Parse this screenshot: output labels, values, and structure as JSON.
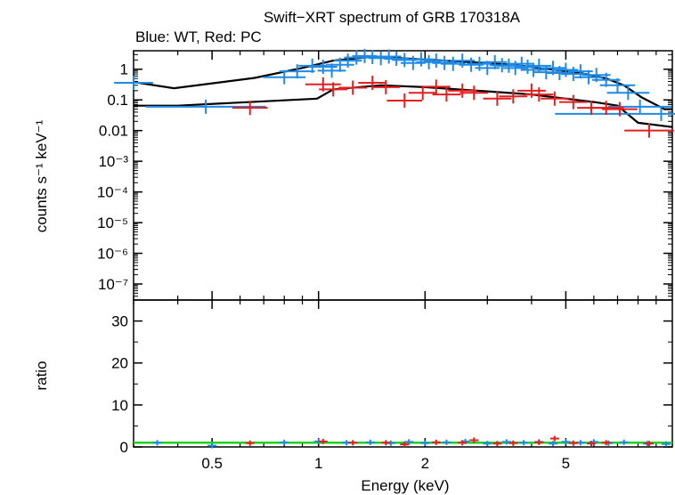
{
  "chart_data": [
    {
      "type": "scatter",
      "panel": "spectrum",
      "title": "Swift−XRT spectrum of GRB 170318A",
      "subtitle": "Blue: WT, Red: PC",
      "ylabel": "counts s⁻¹ keV⁻¹",
      "xlabel": "",
      "xscale": "log",
      "yscale": "log",
      "xlim": [
        0.3,
        10
      ],
      "ylim": [
        3e-08,
        4
      ],
      "xticks": [
        {
          "value": 0.5,
          "label": "0.5"
        },
        {
          "value": 1,
          "label": "1"
        },
        {
          "value": 2,
          "label": "2"
        },
        {
          "value": 5,
          "label": "5"
        }
      ],
      "yticks": [
        {
          "value": 1,
          "label": "1"
        },
        {
          "value": 0.1,
          "label": "0.1"
        },
        {
          "value": 0.01,
          "label": "0.01"
        },
        {
          "value": 0.001,
          "label": "10⁻³"
        },
        {
          "value": 0.0001,
          "label": "10⁻⁴"
        },
        {
          "value": 1e-05,
          "label": "10⁻⁵"
        },
        {
          "value": 1e-06,
          "label": "10⁻⁶"
        },
        {
          "value": 1e-07,
          "label": "10⁻⁷"
        }
      ],
      "colors": {
        "WT": "#1e8ae6",
        "PC": "#e61e1e",
        "model": "#000000"
      },
      "series": [
        {
          "mode": "WT",
          "color": "#1e8ae6",
          "points": [
            [
              0.3,
              0.36,
              0.055
            ],
            [
              0.48,
              0.06,
              0.17
            ],
            [
              0.8,
              0.55,
              0.06
            ],
            [
              0.87,
              0.85,
              0.05
            ],
            [
              0.96,
              1.3,
              0.04
            ],
            [
              1.03,
              1.2,
              0.04
            ],
            [
              1.09,
              0.9,
              0.04
            ],
            [
              1.15,
              1.4,
              0.04
            ],
            [
              1.21,
              1.9,
              0.04
            ],
            [
              1.28,
              2.4,
              0.035
            ],
            [
              1.35,
              2.7,
              0.035
            ],
            [
              1.42,
              2.5,
              0.035
            ],
            [
              1.5,
              2.3,
              0.035
            ],
            [
              1.58,
              2.6,
              0.035
            ],
            [
              1.66,
              2.2,
              0.035
            ],
            [
              1.75,
              2.0,
              0.035
            ],
            [
              1.85,
              1.6,
              0.035
            ],
            [
              1.95,
              2.1,
              0.035
            ],
            [
              2.05,
              1.7,
              0.035
            ],
            [
              2.15,
              1.9,
              0.035
            ],
            [
              2.27,
              1.6,
              0.035
            ],
            [
              2.4,
              1.5,
              0.035
            ],
            [
              2.55,
              1.9,
              0.035
            ],
            [
              2.7,
              1.4,
              0.035
            ],
            [
              2.85,
              1.5,
              0.035
            ],
            [
              3.0,
              1.1,
              0.035
            ],
            [
              3.15,
              1.7,
              0.035
            ],
            [
              3.3,
              1.35,
              0.035
            ],
            [
              3.45,
              1.3,
              0.035
            ],
            [
              3.6,
              1.1,
              0.035
            ],
            [
              3.75,
              1.5,
              0.035
            ],
            [
              3.9,
              1.2,
              0.035
            ],
            [
              4.05,
              0.95,
              0.035
            ],
            [
              4.2,
              1.3,
              0.035
            ],
            [
              4.4,
              0.8,
              0.035
            ],
            [
              4.6,
              1.1,
              0.035
            ],
            [
              4.8,
              0.75,
              0.035
            ],
            [
              5.0,
              0.95,
              0.035
            ],
            [
              5.25,
              0.7,
              0.035
            ],
            [
              5.5,
              0.85,
              0.035
            ],
            [
              5.8,
              0.55,
              0.04
            ],
            [
              6.1,
              0.65,
              0.04
            ],
            [
              6.5,
              0.45,
              0.04
            ],
            [
              7.0,
              0.3,
              0.05
            ],
            [
              7.5,
              0.17,
              0.06
            ],
            [
              8.1,
              0.06,
              0.09
            ],
            [
              9.3,
              0.035,
              0.3
            ]
          ]
        },
        {
          "mode": "PC",
          "color": "#e61e1e",
          "points": [
            [
              0.64,
              0.055,
              0.05
            ],
            [
              1.03,
              0.32,
              0.05
            ],
            [
              1.1,
              0.22,
              0.04
            ],
            [
              1.25,
              0.25,
              0.04
            ],
            [
              1.42,
              0.36,
              0.04
            ],
            [
              1.55,
              0.26,
              0.04
            ],
            [
              1.75,
              0.095,
              0.05
            ],
            [
              1.97,
              0.17,
              0.04
            ],
            [
              2.15,
              0.27,
              0.04
            ],
            [
              2.3,
              0.15,
              0.04
            ],
            [
              2.55,
              0.2,
              0.04
            ],
            [
              2.75,
              0.17,
              0.04
            ],
            [
              3.2,
              0.11,
              0.04
            ],
            [
              3.55,
              0.13,
              0.04
            ],
            [
              4.0,
              0.2,
              0.04
            ],
            [
              4.2,
              0.15,
              0.04
            ],
            [
              4.65,
              0.11,
              0.04
            ],
            [
              5.25,
              0.085,
              0.04
            ],
            [
              5.9,
              0.055,
              0.04
            ],
            [
              6.5,
              0.055,
              0.05
            ],
            [
              7.1,
              0.05,
              0.05
            ],
            [
              8.6,
              0.01,
              0.07
            ]
          ]
        }
      ],
      "models": [
        {
          "mode": "WT",
          "points": [
            [
              0.3,
              0.38
            ],
            [
              0.39,
              0.24
            ],
            [
              0.66,
              0.52
            ],
            [
              0.9,
              1.1
            ],
            [
              1.1,
              1.9
            ],
            [
              1.4,
              2.5
            ],
            [
              1.8,
              2.2
            ],
            [
              2.5,
              1.8
            ],
            [
              3.5,
              1.4
            ],
            [
              4.5,
              1.0
            ],
            [
              5.5,
              0.75
            ],
            [
              6.5,
              0.5
            ],
            [
              7.3,
              0.3
            ],
            [
              8.2,
              0.12
            ],
            [
              9.5,
              0.05
            ],
            [
              10,
              0.05
            ]
          ]
        },
        {
          "mode": "PC",
          "points": [
            [
              0.3,
              0.065
            ],
            [
              0.4,
              0.065
            ],
            [
              0.99,
              0.11
            ],
            [
              1.1,
              0.22
            ],
            [
              1.5,
              0.3
            ],
            [
              2.0,
              0.26
            ],
            [
              3.0,
              0.19
            ],
            [
              4.0,
              0.15
            ],
            [
              5.0,
              0.11
            ],
            [
              6.0,
              0.085
            ],
            [
              7.0,
              0.065
            ],
            [
              8.0,
              0.018
            ],
            [
              10,
              0.013
            ]
          ]
        }
      ]
    },
    {
      "type": "scatter",
      "panel": "ratio",
      "xlabel": "Energy (keV)",
      "ylabel": "ratio",
      "xscale": "log",
      "yscale": "linear",
      "xlim": [
        0.3,
        10
      ],
      "ylim": [
        0,
        35
      ],
      "xticks": [
        {
          "value": 0.5,
          "label": "0.5"
        },
        {
          "value": 1,
          "label": "1"
        },
        {
          "value": 2,
          "label": "2"
        },
        {
          "value": 5,
          "label": "5"
        }
      ],
      "yticks": [
        {
          "value": 0,
          "label": "0"
        },
        {
          "value": 10,
          "label": "10"
        },
        {
          "value": 20,
          "label": "20"
        },
        {
          "value": 30,
          "label": "30"
        }
      ],
      "reference_line": {
        "y": 1,
        "color": "#1fd21f"
      },
      "series": [
        {
          "mode": "WT",
          "color": "#1e8ae6",
          "points": [
            [
              0.35,
              1.0
            ],
            [
              0.5,
              0.3
            ],
            [
              0.8,
              1.1
            ],
            [
              1.0,
              1.3
            ],
            [
              1.2,
              1.0
            ],
            [
              1.4,
              1.1
            ],
            [
              1.6,
              0.9
            ],
            [
              1.8,
              1.2
            ],
            [
              2.0,
              0.9
            ],
            [
              2.3,
              1.1
            ],
            [
              2.6,
              1.3
            ],
            [
              3.0,
              0.8
            ],
            [
              3.4,
              1.2
            ],
            [
              3.8,
              1.0
            ],
            [
              4.2,
              1.2
            ],
            [
              4.6,
              0.8
            ],
            [
              5.0,
              1.2
            ],
            [
              5.5,
              1.0
            ],
            [
              6.0,
              1.2
            ],
            [
              6.6,
              0.9
            ],
            [
              7.3,
              1.1
            ],
            [
              8.5,
              0.8
            ],
            [
              9.6,
              0.7
            ]
          ]
        },
        {
          "mode": "PC",
          "color": "#e61e1e",
          "points": [
            [
              0.64,
              0.9
            ],
            [
              1.03,
              1.3
            ],
            [
              1.25,
              1.0
            ],
            [
              1.55,
              1.0
            ],
            [
              1.75,
              0.6
            ],
            [
              2.15,
              1.1
            ],
            [
              2.55,
              1.0
            ],
            [
              2.75,
              1.6
            ],
            [
              3.2,
              0.8
            ],
            [
              3.55,
              0.9
            ],
            [
              4.2,
              1.1
            ],
            [
              4.65,
              2.0
            ],
            [
              5.25,
              0.9
            ],
            [
              5.9,
              0.8
            ],
            [
              6.5,
              1.0
            ],
            [
              8.6,
              0.8
            ]
          ]
        }
      ]
    }
  ]
}
